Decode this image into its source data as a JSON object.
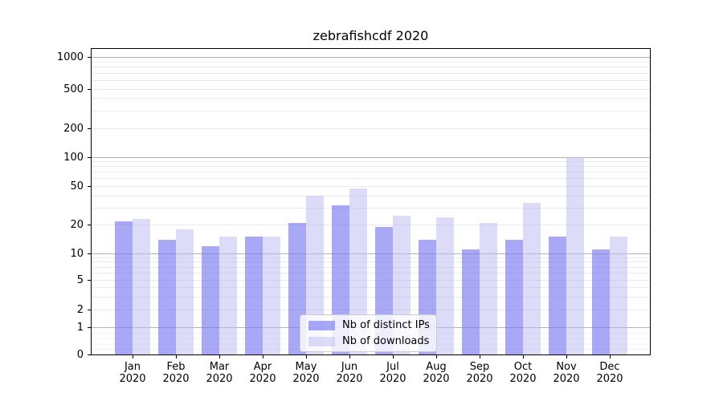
{
  "colors": {
    "ips_bar": "#7979f1",
    "ips_bar_alpha": 0.65,
    "downloads_bar": "#b9b9f1",
    "downloads_bar_alpha": 0.5,
    "major_grid": "#b3b3b3",
    "minor_grid": "#e9e9e9",
    "faint_grid": "#f3f3f3",
    "spine": "#000000",
    "text": "#000000",
    "legend_bg": "#ffffff",
    "legend_bg_alpha": 0.8,
    "legend_border": "#cccccc"
  },
  "chart_data": {
    "type": "bar",
    "title": "zebrafishcdf 2020",
    "categories": [
      "Jan 2020",
      "Feb 2020",
      "Mar 2020",
      "Apr 2020",
      "May 2020",
      "Jun 2020",
      "Jul 2020",
      "Aug 2020",
      "Sep 2020",
      "Oct 2020",
      "Nov 2020",
      "Dec 2020"
    ],
    "series": [
      {
        "name": "Nb of distinct IPs",
        "color": "#7979f1",
        "alpha": 0.65,
        "values": [
          22,
          14,
          12,
          15,
          21,
          32,
          19,
          14,
          11,
          14,
          15,
          11
        ]
      },
      {
        "name": "Nb of downloads",
        "color": "#b9b9f1",
        "alpha": 0.5,
        "values": [
          23,
          18,
          15,
          15,
          40,
          48,
          25,
          24,
          21,
          34,
          100,
          15
        ]
      }
    ],
    "xlabel": "",
    "ylabel": "",
    "y_axis": {
      "scale": "symlog-like",
      "ylim": [
        0,
        1200
      ],
      "ticks": [
        0,
        1,
        2,
        5,
        10,
        20,
        50,
        100,
        200,
        500,
        1000
      ],
      "tick_labels": [
        "0",
        "1",
        "2",
        "5",
        "10",
        "20",
        "50",
        "100",
        "200",
        "500",
        "1000"
      ],
      "major_grid_values": [
        1,
        10,
        100,
        1000
      ],
      "minor_grid_values": [
        0.2,
        0.4,
        0.6,
        0.8,
        2,
        3,
        4,
        5,
        6,
        7,
        8,
        9,
        20,
        30,
        40,
        50,
        60,
        70,
        80,
        90,
        200,
        300,
        400,
        500,
        600,
        700,
        800,
        900
      ],
      "tick_positions_norm": [
        [
          0,
          0
        ],
        [
          1,
          0.0888
        ],
        [
          2,
          0.1463
        ],
        [
          5,
          0.2435
        ],
        [
          10,
          0.3311
        ],
        [
          20,
          0.4238
        ],
        [
          50,
          0.5492
        ],
        [
          100,
          0.6447
        ],
        [
          200,
          0.7387
        ],
        [
          500,
          0.8667
        ],
        [
          1000,
          0.9713
        ]
      ]
    },
    "legend": {
      "position": "lower center"
    },
    "grid": true
  }
}
